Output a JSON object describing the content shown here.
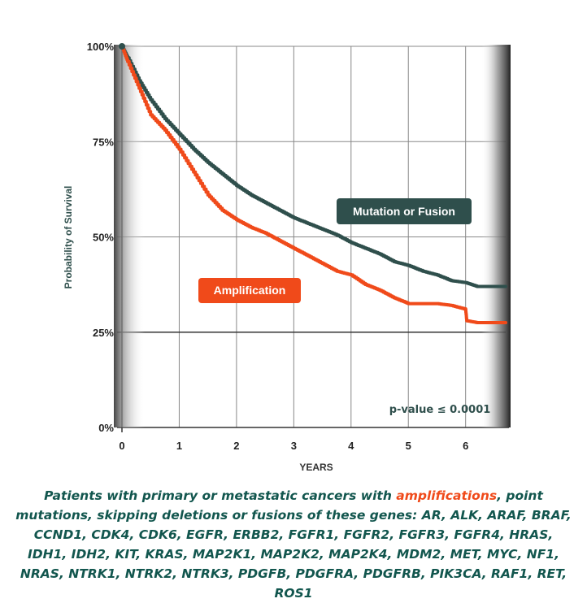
{
  "chart_data": {
    "type": "line",
    "title": "",
    "xlabel": "YEARS",
    "ylabel": "Probability of Survival",
    "xlim": [
      0,
      6.7
    ],
    "ylim": [
      0,
      100
    ],
    "x_ticks": [
      "0",
      "1",
      "2",
      "3",
      "4",
      "5",
      "6"
    ],
    "y_ticks": [
      "0%",
      "25%",
      "50%",
      "75%",
      "100%"
    ],
    "grid": true,
    "series": [
      {
        "name": "Mutation or Fusion",
        "color": "#2f4f4c",
        "x": [
          0,
          0.1,
          0.3,
          0.5,
          0.75,
          1.0,
          1.25,
          1.5,
          1.75,
          2.0,
          2.25,
          2.5,
          2.75,
          3.0,
          3.25,
          3.5,
          3.75,
          4.0,
          4.25,
          4.5,
          4.75,
          5.0,
          5.25,
          5.5,
          5.75,
          6.0,
          6.2,
          6.4,
          6.7
        ],
        "values": [
          100,
          97,
          91,
          86,
          81,
          77,
          73,
          69.5,
          66.5,
          63.5,
          61,
          59,
          57,
          55,
          53.5,
          52,
          50.5,
          48.5,
          47,
          45.5,
          43.5,
          42.5,
          41,
          40,
          38.5,
          38,
          37,
          37,
          37
        ]
      },
      {
        "name": "Amplification",
        "color": "#f04a1a",
        "x": [
          0,
          0.1,
          0.3,
          0.5,
          0.75,
          1.0,
          1.25,
          1.5,
          1.75,
          2.0,
          2.25,
          2.5,
          2.75,
          3.0,
          3.25,
          3.5,
          3.75,
          4.0,
          4.25,
          4.5,
          4.75,
          5.0,
          5.25,
          5.5,
          5.75,
          6.0,
          6.02,
          6.2,
          6.45,
          6.7
        ],
        "values": [
          100,
          96,
          89,
          82,
          78,
          73,
          67,
          61,
          57,
          54.5,
          52.5,
          51,
          49,
          47,
          45,
          43,
          41,
          40,
          37.5,
          36,
          34,
          32.5,
          32.5,
          32.5,
          32,
          31,
          28,
          27.5,
          27.5,
          27.5
        ]
      }
    ],
    "annotations": {
      "mutation_label": "Mutation or Fusion",
      "amplification_label": "Amplification",
      "p_value": "p-value ≤ 0.0001"
    }
  },
  "caption": {
    "part1": "Patients with primary or metastatic cancers with ",
    "highlight": "amplifications",
    "part2": ", point mutations, skipping deletions or fusions",
    "part3": " of these genes:  AR, ALK, ARAF, BRAF, CCND1, CDK4, CDK6, EGFR, ERBB2,  FGFR1, FGFR2, FGFR3, FGFR4, HRAS, IDH1, IDH2, KIT, KRAS, MAP2K1, MAP2K2, MAP2K4, MDM2, MET, MYC, NF1, NRAS, NTRK1, NTRK2, NTRK3, PDGFB, PDGFRA, PDGFRB, PIK3CA, RAF1, RET, ROS1"
  },
  "colors": {
    "mutation": "#2f4f4c",
    "amplification": "#f04a1a",
    "grid": "#888888",
    "caption": "#12564e"
  }
}
